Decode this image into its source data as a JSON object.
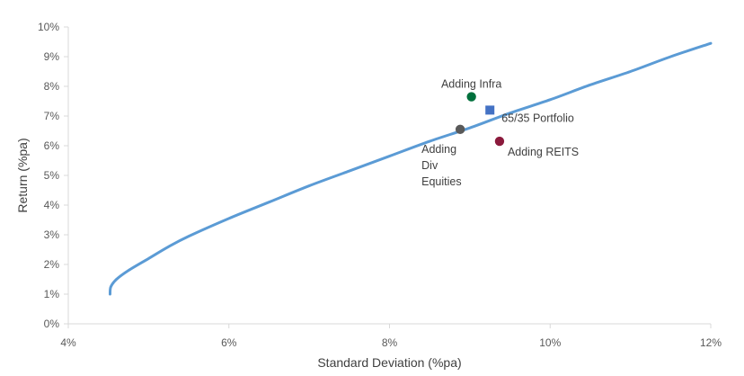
{
  "chart_data": {
    "type": "scatter",
    "xlabel": "Standard Deviation (%pa)",
    "ylabel": "Return (%pa)",
    "xlim": [
      4,
      12
    ],
    "ylim": [
      0,
      10
    ],
    "x_ticks": [
      4,
      6,
      8,
      10,
      12
    ],
    "y_ticks": [
      0,
      1,
      2,
      3,
      4,
      5,
      6,
      7,
      8,
      9,
      10
    ],
    "tick_suffix": "%",
    "grid": false,
    "legend": "none",
    "frontier": {
      "color": "#5B9BD5",
      "points": [
        [
          4.52,
          1.0
        ],
        [
          4.53,
          1.25
        ],
        [
          4.6,
          1.5
        ],
        [
          4.75,
          1.8
        ],
        [
          5.0,
          2.2
        ],
        [
          5.25,
          2.6
        ],
        [
          5.5,
          2.95
        ],
        [
          6.0,
          3.55
        ],
        [
          6.5,
          4.1
        ],
        [
          7.0,
          4.65
        ],
        [
          7.5,
          5.15
        ],
        [
          8.0,
          5.65
        ],
        [
          8.5,
          6.15
        ],
        [
          9.0,
          6.6
        ],
        [
          9.5,
          7.1
        ],
        [
          10.0,
          7.55
        ],
        [
          10.5,
          8.05
        ],
        [
          11.0,
          8.5
        ],
        [
          11.5,
          9.0
        ],
        [
          12.0,
          9.45
        ]
      ]
    },
    "points": [
      {
        "label": "Adding Infra",
        "x": 9.02,
        "y": 7.65,
        "color": "#00703C",
        "marker": "circle"
      },
      {
        "label": "65/35 Portfolio",
        "x": 9.25,
        "y": 7.2,
        "color": "#4472C4",
        "marker": "square"
      },
      {
        "label": "Adding REITS",
        "x": 9.37,
        "y": 6.15,
        "color": "#8B1A3C",
        "marker": "circle"
      },
      {
        "label_lines": [
          "Adding",
          "Div",
          "Equities"
        ],
        "x": 8.88,
        "y": 6.55,
        "color": "#595959",
        "marker": "circle"
      }
    ]
  }
}
